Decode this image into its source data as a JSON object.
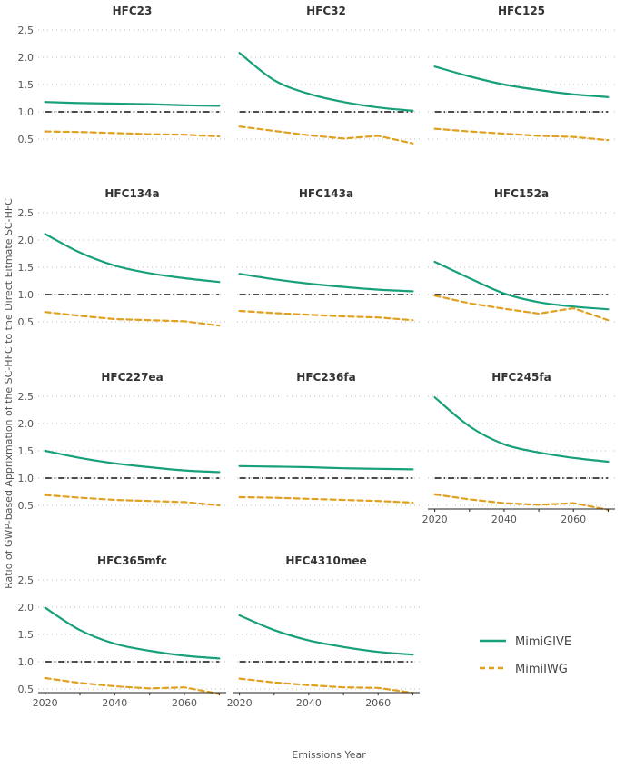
{
  "chart_data": {
    "type": "line",
    "layout": "small-multiples",
    "xlabel": "Emissions Year",
    "ylabel": "Ratio of GWP-based Apprixmation of the SC-HFC to the Direct Eitmate SC-HFC",
    "x": [
      2020,
      2030,
      2040,
      2050,
      2060,
      2070
    ],
    "xticks": [
      2020,
      2040,
      2060
    ],
    "xlim": [
      2018,
      2072
    ],
    "ylim": [
      0.3,
      2.6
    ],
    "yticks": [
      0.5,
      1.0,
      1.5,
      2.0,
      2.5
    ],
    "ytick_labels": [
      "0.5",
      "1.0",
      "1.5",
      "2.0",
      "2.5"
    ],
    "reference_line": 1.0,
    "legend": [
      {
        "name": "MimiGIVE",
        "color": "#17a07a",
        "style": "solid"
      },
      {
        "name": "MimiIWG",
        "color": "#e0a020",
        "style": "dashed"
      }
    ],
    "panels": [
      {
        "title": "HFC23",
        "series": [
          {
            "name": "MimiGIVE",
            "values": [
              1.18,
              1.16,
              1.15,
              1.14,
              1.12,
              1.11
            ]
          },
          {
            "name": "MimiIWG",
            "values": [
              0.64,
              0.63,
              0.61,
              0.59,
              0.58,
              0.55
            ]
          }
        ]
      },
      {
        "title": "HFC32",
        "series": [
          {
            "name": "MimiGIVE",
            "values": [
              2.08,
              1.58,
              1.33,
              1.18,
              1.08,
              1.02
            ]
          },
          {
            "name": "MimiIWG",
            "values": [
              0.73,
              0.65,
              0.57,
              0.51,
              0.56,
              0.42
            ]
          }
        ]
      },
      {
        "title": "HFC125",
        "series": [
          {
            "name": "MimiGIVE",
            "values": [
              1.83,
              1.65,
              1.5,
              1.4,
              1.32,
              1.27
            ]
          },
          {
            "name": "MimiIWG",
            "values": [
              0.69,
              0.64,
              0.6,
              0.56,
              0.54,
              0.48
            ]
          }
        ]
      },
      {
        "title": "HFC134a",
        "series": [
          {
            "name": "MimiGIVE",
            "values": [
              2.11,
              1.77,
              1.53,
              1.39,
              1.3,
              1.23
            ]
          },
          {
            "name": "MimiIWG",
            "values": [
              0.68,
              0.61,
              0.55,
              0.53,
              0.51,
              0.43
            ]
          }
        ]
      },
      {
        "title": "HFC143a",
        "series": [
          {
            "name": "MimiGIVE",
            "values": [
              1.38,
              1.28,
              1.2,
              1.14,
              1.09,
              1.06
            ]
          },
          {
            "name": "MimiIWG",
            "values": [
              0.7,
              0.66,
              0.63,
              0.6,
              0.58,
              0.53
            ]
          }
        ]
      },
      {
        "title": "HFC152a",
        "series": [
          {
            "name": "MimiGIVE",
            "values": [
              1.6,
              1.3,
              1.02,
              0.86,
              0.78,
              0.73
            ]
          },
          {
            "name": "MimiIWG",
            "values": [
              0.98,
              0.84,
              0.74,
              0.65,
              0.75,
              0.53
            ]
          }
        ]
      },
      {
        "title": "HFC227ea",
        "series": [
          {
            "name": "MimiGIVE",
            "values": [
              1.5,
              1.37,
              1.27,
              1.2,
              1.14,
              1.11
            ]
          },
          {
            "name": "MimiIWG",
            "values": [
              0.69,
              0.64,
              0.6,
              0.58,
              0.56,
              0.5
            ]
          }
        ]
      },
      {
        "title": "HFC236fa",
        "series": [
          {
            "name": "MimiGIVE",
            "values": [
              1.22,
              1.21,
              1.2,
              1.18,
              1.17,
              1.16
            ]
          },
          {
            "name": "MimiIWG",
            "values": [
              0.65,
              0.64,
              0.62,
              0.6,
              0.58,
              0.55
            ]
          }
        ]
      },
      {
        "title": "HFC245fa",
        "series": [
          {
            "name": "MimiGIVE",
            "values": [
              2.48,
              1.95,
              1.62,
              1.47,
              1.37,
              1.3
            ]
          },
          {
            "name": "MimiIWG",
            "values": [
              0.7,
              0.61,
              0.54,
              0.51,
              0.54,
              0.42
            ]
          }
        ]
      },
      {
        "title": "HFC365mfc",
        "series": [
          {
            "name": "MimiGIVE",
            "values": [
              1.99,
              1.58,
              1.33,
              1.2,
              1.11,
              1.06
            ]
          },
          {
            "name": "MimiIWG",
            "values": [
              0.7,
              0.61,
              0.55,
              0.51,
              0.53,
              0.41
            ]
          }
        ]
      },
      {
        "title": "HFC4310mee",
        "series": [
          {
            "name": "MimiGIVE",
            "values": [
              1.85,
              1.58,
              1.39,
              1.27,
              1.18,
              1.13
            ]
          },
          {
            "name": "MimiIWG",
            "values": [
              0.69,
              0.62,
              0.57,
              0.53,
              0.52,
              0.43
            ]
          }
        ]
      }
    ]
  }
}
